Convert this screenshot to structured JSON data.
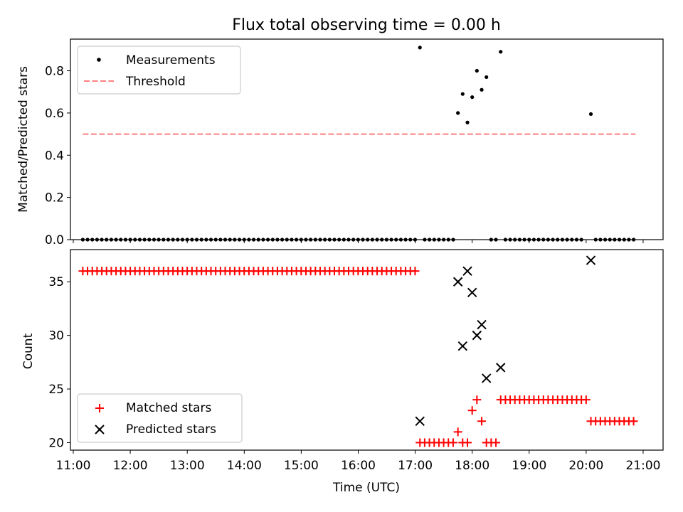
{
  "chart_data": [
    {
      "type": "scatter",
      "title": "Flux total observing time = 0.00 h",
      "ylabel": "Matched/Predicted stars",
      "xlim": [
        10.95,
        21.35
      ],
      "ylim": [
        0,
        0.95
      ],
      "yticks": [
        0.0,
        0.2,
        0.4,
        0.6,
        0.8
      ],
      "ytick_labels": [
        "0.0",
        "0.2",
        "0.4",
        "0.6",
        "0.8"
      ],
      "legend": {
        "placement": "top-left",
        "entries": [
          "Measurements",
          "Threshold"
        ]
      },
      "threshold": {
        "name": "Threshold",
        "y": 0.5,
        "x_range": [
          11.167,
          20.867
        ],
        "color": "#ff7f7f"
      },
      "series": [
        {
          "name": "Measurements",
          "color": "#000000",
          "zero_runs": [
            {
              "start": 11.167,
              "end": 17.0,
              "step": 0.0833
            },
            {
              "start": 17.167,
              "end": 17.667,
              "step": 0.0833
            },
            {
              "start": 18.333,
              "end": 18.417,
              "step": 0.0833
            },
            {
              "start": 18.583,
              "end": 19.917,
              "step": 0.0833
            },
            {
              "start": 20.167,
              "end": 20.867,
              "step": 0.0833
            }
          ],
          "points": [
            {
              "x": 17.083,
              "y": 0.91
            },
            {
              "x": 17.75,
              "y": 0.6
            },
            {
              "x": 17.833,
              "y": 0.69
            },
            {
              "x": 17.917,
              "y": 0.555
            },
            {
              "x": 18.0,
              "y": 0.675
            },
            {
              "x": 18.083,
              "y": 0.8
            },
            {
              "x": 18.167,
              "y": 0.71
            },
            {
              "x": 18.25,
              "y": 0.77
            },
            {
              "x": 18.5,
              "y": 0.89
            },
            {
              "x": 20.083,
              "y": 0.595
            }
          ]
        }
      ]
    },
    {
      "type": "scatter",
      "xlabel": "Time (UTC)",
      "ylabel": "Count",
      "xlim": [
        10.95,
        21.35
      ],
      "ylim": [
        19.3,
        38.0
      ],
      "xticks": [
        11,
        12,
        13,
        14,
        15,
        16,
        17,
        18,
        19,
        20,
        21
      ],
      "xtick_labels": [
        "11:00",
        "12:00",
        "13:00",
        "14:00",
        "15:00",
        "16:00",
        "17:00",
        "18:00",
        "19:00",
        "20:00",
        "21:00"
      ],
      "yticks": [
        20,
        25,
        30,
        35
      ],
      "ytick_labels": [
        "20",
        "25",
        "30",
        "35"
      ],
      "legend": {
        "placement": "lower-left",
        "entries": [
          "Matched stars",
          "Predicted stars"
        ]
      },
      "series": [
        {
          "name": "Matched stars",
          "color": "#ff0000",
          "marker": "plus",
          "runs": [
            {
              "start": 11.167,
              "end": 17.0,
              "step": 0.0833,
              "y": 36
            },
            {
              "start": 17.083,
              "end": 17.667,
              "step": 0.0833,
              "y": 20
            },
            {
              "start": 18.25,
              "end": 18.417,
              "step": 0.0833,
              "y": 20
            },
            {
              "start": 18.5,
              "end": 20.0,
              "step": 0.0833,
              "y": 24
            },
            {
              "start": 20.083,
              "end": 20.867,
              "step": 0.0833,
              "y": 22
            }
          ],
          "points": [
            {
              "x": 17.75,
              "y": 21
            },
            {
              "x": 17.833,
              "y": 20
            },
            {
              "x": 17.917,
              "y": 20
            },
            {
              "x": 18.0,
              "y": 23
            },
            {
              "x": 18.083,
              "y": 24
            },
            {
              "x": 18.167,
              "y": 22
            }
          ]
        },
        {
          "name": "Predicted stars",
          "color": "#000000",
          "marker": "x",
          "points": [
            {
              "x": 17.083,
              "y": 22
            },
            {
              "x": 17.75,
              "y": 35
            },
            {
              "x": 17.833,
              "y": 29
            },
            {
              "x": 17.917,
              "y": 36
            },
            {
              "x": 18.0,
              "y": 34
            },
            {
              "x": 18.083,
              "y": 30
            },
            {
              "x": 18.167,
              "y": 31
            },
            {
              "x": 18.25,
              "y": 26
            },
            {
              "x": 18.5,
              "y": 27
            },
            {
              "x": 20.083,
              "y": 37
            }
          ]
        }
      ]
    }
  ]
}
